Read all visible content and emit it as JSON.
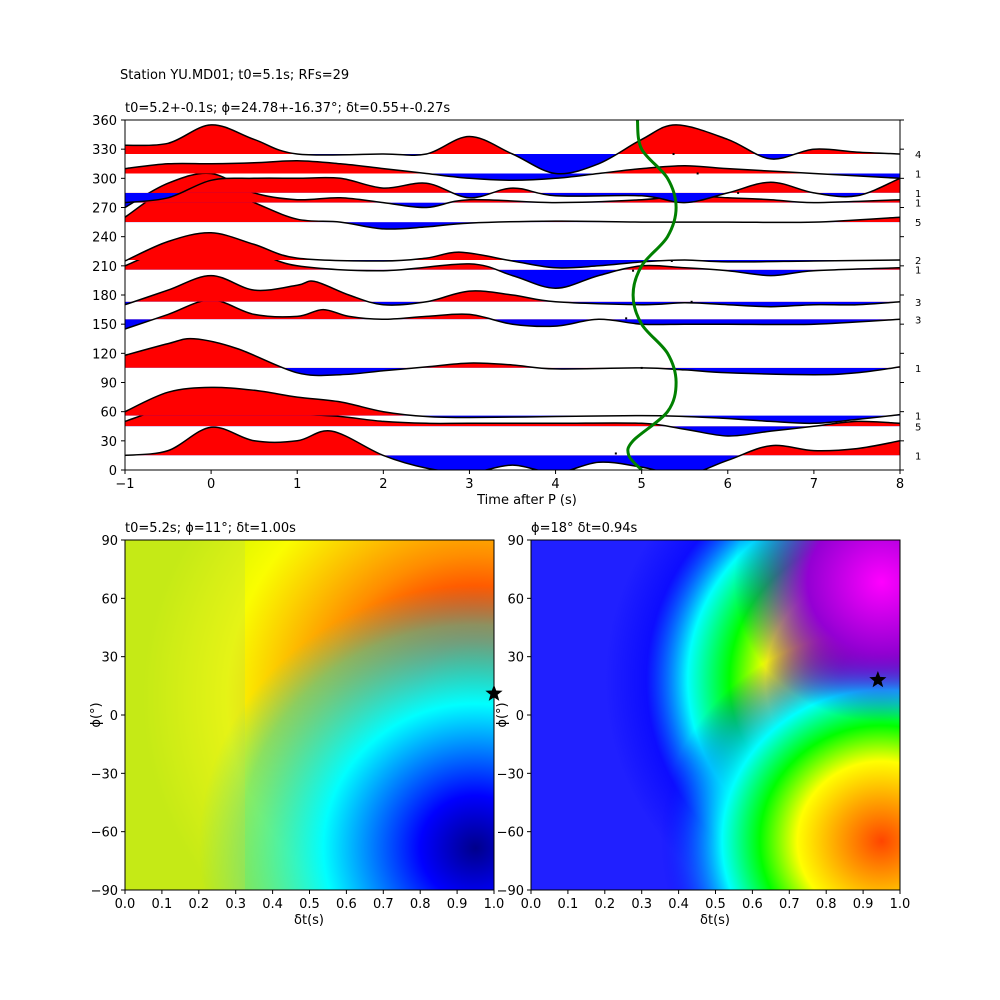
{
  "figure": {
    "suptitle": "Station YU.MD01; t0=5.1s; RFs=29"
  },
  "chart_data": [
    {
      "type": "line",
      "panel": "receiver-functions",
      "title": "t0=5.2+-0.1s; ϕ=24.78+-16.37°; δt=0.55+-0.27s",
      "xlabel": "Time after P (s)",
      "ylabel": "",
      "xlim": [
        -1,
        8
      ],
      "ylim": [
        0,
        360
      ],
      "xticks": [
        "−1",
        "0",
        "1",
        "2",
        "3",
        "4",
        "5",
        "6",
        "7",
        "8"
      ],
      "yticks": [
        "0",
        "30",
        "60",
        "90",
        "120",
        "150",
        "180",
        "210",
        "240",
        "270",
        "300",
        "330",
        "360"
      ],
      "positive_fill": "#ff0000",
      "negative_fill": "#0000ff",
      "curve_color": "#008000",
      "traces": [
        {
          "baz": 15,
          "count": "1",
          "pts": [
            [
              -1,
              15
            ],
            [
              -0.5,
              20
            ],
            [
              0,
              44
            ],
            [
              0.5,
              30
            ],
            [
              1,
              30
            ],
            [
              1.4,
              40
            ],
            [
              2,
              15
            ],
            [
              2.5,
              2
            ],
            [
              3,
              -3
            ],
            [
              3.5,
              5
            ],
            [
              4,
              -3
            ],
            [
              4.5,
              8
            ],
            [
              5,
              3
            ],
            [
              5.5,
              -5
            ],
            [
              6,
              10
            ],
            [
              6.5,
              25
            ],
            [
              7,
              20
            ],
            [
              7.5,
              22
            ],
            [
              8,
              30
            ]
          ]
        },
        {
          "baz": 45,
          "count": "5",
          "pts": [
            [
              -1,
              50
            ],
            [
              -0.5,
              65
            ],
            [
              0,
              75
            ],
            [
              0.5,
              65
            ],
            [
              1,
              58
            ],
            [
              1.5,
              55
            ],
            [
              2,
              50
            ],
            [
              2.5,
              48
            ],
            [
              3,
              48
            ],
            [
              4,
              48
            ],
            [
              5,
              48
            ],
            [
              5.5,
              42
            ],
            [
              6,
              35
            ],
            [
              6.5,
              40
            ],
            [
              7,
              45
            ],
            [
              7.5,
              50
            ],
            [
              8,
              48
            ]
          ]
        },
        {
          "baz": 56,
          "count": "1",
          "pts": [
            [
              -1,
              60
            ],
            [
              -0.5,
              80
            ],
            [
              0,
              85
            ],
            [
              0.5,
              82
            ],
            [
              1,
              75
            ],
            [
              1.5,
              70
            ],
            [
              2,
              60
            ],
            [
              2.5,
              55
            ],
            [
              3,
              54
            ],
            [
              4,
              55
            ],
            [
              5,
              56
            ],
            [
              5.5,
              55
            ],
            [
              6,
              53
            ],
            [
              6.5,
              50
            ],
            [
              7,
              48
            ],
            [
              7.5,
              52
            ],
            [
              8,
              57
            ]
          ]
        },
        {
          "baz": 105,
          "count": "1",
          "pts": [
            [
              -1,
              118
            ],
            [
              -0.5,
              130
            ],
            [
              -0.2,
              135
            ],
            [
              0.3,
              125
            ],
            [
              1,
              100
            ],
            [
              1.5,
              98
            ],
            [
              2,
              102
            ],
            [
              2.5,
              106
            ],
            [
              3,
              110
            ],
            [
              3.5,
              108
            ],
            [
              4,
              104
            ],
            [
              5,
              105
            ],
            [
              5.5,
              103
            ],
            [
              6,
              100
            ],
            [
              7,
              98
            ],
            [
              7.5,
              100
            ],
            [
              8,
              106
            ]
          ]
        },
        {
          "baz": 155,
          "count": "3",
          "pts": [
            [
              -1,
              145
            ],
            [
              -0.5,
              160
            ],
            [
              0,
              175
            ],
            [
              0.5,
              160
            ],
            [
              1,
              158
            ],
            [
              1.3,
              165
            ],
            [
              1.6,
              158
            ],
            [
              2,
              155
            ],
            [
              2.5,
              158
            ],
            [
              3,
              160
            ],
            [
              3.5,
              150
            ],
            [
              4,
              148
            ],
            [
              4.5,
              155
            ],
            [
              5,
              150
            ],
            [
              5.5,
              150
            ],
            [
              6,
              150
            ],
            [
              7,
              150
            ],
            [
              8,
              155
            ]
          ]
        },
        {
          "baz": 173,
          "count": "3",
          "pts": [
            [
              -1,
              170
            ],
            [
              -0.5,
              185
            ],
            [
              0,
              200
            ],
            [
              0.5,
              185
            ],
            [
              1,
              190
            ],
            [
              1.2,
              194
            ],
            [
              1.6,
              180
            ],
            [
              2,
              170
            ],
            [
              2.5,
              173
            ],
            [
              3,
              184
            ],
            [
              3.5,
              180
            ],
            [
              4,
              173
            ],
            [
              5,
              170
            ],
            [
              5.5,
              172
            ],
            [
              6,
              170
            ],
            [
              6.5,
              168
            ],
            [
              7,
              170
            ],
            [
              7.5,
              170
            ],
            [
              8,
              173
            ]
          ]
        },
        {
          "baz": 206,
          "count": "1",
          "pts": [
            [
              -1,
              210
            ],
            [
              -0.5,
              228
            ],
            [
              0,
              235
            ],
            [
              0.5,
              225
            ],
            [
              1,
              210
            ],
            [
              2,
              205
            ],
            [
              3,
              212
            ],
            [
              3.5,
              200
            ],
            [
              4,
              187
            ],
            [
              4.5,
              200
            ],
            [
              5,
              210
            ],
            [
              5.5,
              208
            ],
            [
              6,
              205
            ],
            [
              6.5,
              200
            ],
            [
              7,
              205
            ],
            [
              8,
              208
            ]
          ]
        },
        {
          "baz": 216,
          "count": "2",
          "pts": [
            [
              -1,
              215
            ],
            [
              -0.5,
              235
            ],
            [
              0,
              244
            ],
            [
              0.5,
              232
            ],
            [
              1,
              218
            ],
            [
              2,
              215
            ],
            [
              2.5,
              218
            ],
            [
              2.9,
              224
            ],
            [
              3.5,
              215
            ],
            [
              4,
              208
            ],
            [
              4.5,
              210
            ],
            [
              5,
              214
            ],
            [
              5.5,
              216
            ],
            [
              6,
              214
            ],
            [
              7,
              215
            ],
            [
              8,
              216
            ]
          ]
        },
        {
          "baz": 255,
          "count": "5",
          "pts": [
            [
              -1,
              260
            ],
            [
              -0.5,
              290
            ],
            [
              -0.1,
              298
            ],
            [
              0.5,
              275
            ],
            [
              1,
              258
            ],
            [
              1.5,
              255
            ],
            [
              2,
              248
            ],
            [
              2.5,
              250
            ],
            [
              3,
              254
            ],
            [
              4,
              256
            ],
            [
              5,
              255
            ],
            [
              6,
              255
            ],
            [
              7,
              255
            ],
            [
              8,
              260
            ]
          ]
        },
        {
          "baz": 275,
          "count": "1",
          "pts": [
            [
              -1,
              270
            ],
            [
              -0.5,
              295
            ],
            [
              0,
              305
            ],
            [
              0.5,
              285
            ],
            [
              1,
              278
            ],
            [
              1.5,
              280
            ],
            [
              2,
              275
            ],
            [
              2.5,
              270
            ],
            [
              3,
              278
            ],
            [
              4,
              275
            ],
            [
              5,
              278
            ],
            [
              5.5,
              282
            ],
            [
              6,
              280
            ],
            [
              6.5,
              278
            ],
            [
              7,
              275
            ],
            [
              8,
              278
            ]
          ]
        },
        {
          "baz": 285,
          "count": "1",
          "pts": [
            [
              -1,
              275
            ],
            [
              -0.5,
              280
            ],
            [
              0,
              298
            ],
            [
              0.5,
              300
            ],
            [
              1,
              300
            ],
            [
              1.5,
              300
            ],
            [
              2,
              290
            ],
            [
              2.5,
              295
            ],
            [
              3,
              280
            ],
            [
              3.5,
              290
            ],
            [
              4,
              282
            ],
            [
              5,
              282
            ],
            [
              5.5,
              275
            ],
            [
              6,
              285
            ],
            [
              6.5,
              296
            ],
            [
              7,
              285
            ],
            [
              7.5,
              282
            ],
            [
              8,
              300
            ]
          ]
        },
        {
          "baz": 305,
          "count": "1",
          "pts": [
            [
              -1,
              310
            ],
            [
              -0.5,
              315
            ],
            [
              0,
              315
            ],
            [
              0.5,
              316
            ],
            [
              1,
              318
            ],
            [
              1.5,
              315
            ],
            [
              2,
              310
            ],
            [
              2.5,
              305
            ],
            [
              3,
              300
            ],
            [
              3.5,
              298
            ],
            [
              4,
              300
            ],
            [
              4.5,
              305
            ],
            [
              5,
              310
            ],
            [
              5.5,
              313
            ],
            [
              6,
              310
            ],
            [
              7,
              305
            ],
            [
              8,
              300
            ]
          ]
        },
        {
          "baz": 325,
          "count": "4",
          "pts": [
            [
              -1,
              334
            ],
            [
              -0.5,
              336
            ],
            [
              0,
              355
            ],
            [
              0.5,
              340
            ],
            [
              1,
              325
            ],
            [
              2,
              325
            ],
            [
              2.5,
              325
            ],
            [
              3,
              343
            ],
            [
              3.5,
              325
            ],
            [
              4,
              305
            ],
            [
              4.5,
              315
            ],
            [
              5,
              340
            ],
            [
              5.4,
              355
            ],
            [
              6,
              340
            ],
            [
              6.5,
              320
            ],
            [
              7,
              330
            ],
            [
              7.5,
              327
            ],
            [
              8,
              325
            ]
          ]
        }
      ],
      "marks": [
        [
          5.37,
          325
        ],
        [
          5.65,
          305
        ],
        [
          6.12,
          285
        ],
        [
          4.9,
          205
        ],
        [
          5.35,
          215
        ],
        [
          5.58,
          173
        ],
        [
          4.82,
          156
        ],
        [
          5.0,
          105
        ],
        [
          4.7,
          17
        ]
      ],
      "curve": [
        [
          5.0,
          0
        ],
        [
          4.85,
          15
        ],
        [
          4.9,
          30
        ],
        [
          5.3,
          60
        ],
        [
          5.4,
          90
        ],
        [
          5.3,
          120
        ],
        [
          5.0,
          150
        ],
        [
          4.9,
          180
        ],
        [
          5.0,
          210
        ],
        [
          5.3,
          240
        ],
        [
          5.4,
          270
        ],
        [
          5.3,
          300
        ],
        [
          5.0,
          330
        ],
        [
          4.95,
          360
        ]
      ]
    },
    {
      "type": "heatmap",
      "panel": "grid-search-left",
      "title": "t0=5.2s; ϕ=11°; δt=1.00s",
      "xlabel": "δt(s)",
      "ylabel": "ϕ(°)",
      "xlim": [
        0,
        1
      ],
      "ylim": [
        -90,
        90
      ],
      "xticks": [
        "0.0",
        "0.1",
        "0.2",
        "0.3",
        "0.4",
        "0.5",
        "0.6",
        "0.7",
        "0.8",
        "0.9",
        "1.0"
      ],
      "yticks": [
        "−90",
        "−60",
        "−30",
        "0",
        "30",
        "60",
        "90"
      ],
      "best": {
        "dt": 1.0,
        "phi": 11
      }
    },
    {
      "type": "heatmap",
      "panel": "grid-search-right",
      "title": "ϕ=18° δt=0.94s",
      "xlabel": "δt(s)",
      "ylabel": "ϕ(°)",
      "xlim": [
        0,
        1
      ],
      "ylim": [
        -90,
        90
      ],
      "xticks": [
        "0.0",
        "0.1",
        "0.2",
        "0.3",
        "0.4",
        "0.5",
        "0.6",
        "0.7",
        "0.8",
        "0.9",
        "1.0"
      ],
      "yticks": [
        "−90",
        "−60",
        "−30",
        "0",
        "30",
        "60",
        "90"
      ],
      "best": {
        "dt": 0.94,
        "phi": 18
      }
    }
  ]
}
